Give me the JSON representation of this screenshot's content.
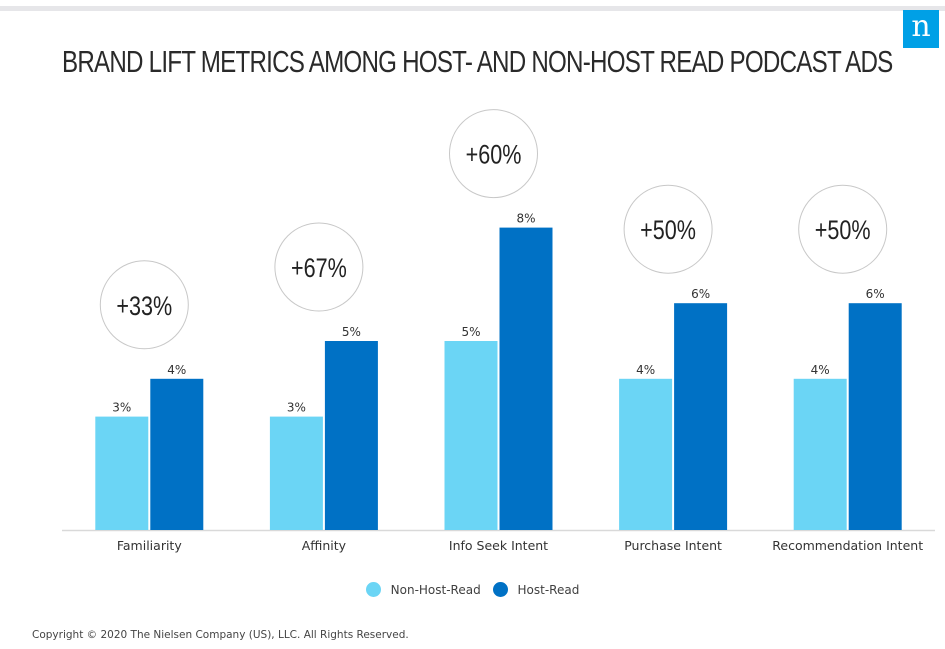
{
  "header": {
    "title": "BRAND LIFT METRICS AMONG HOST- AND NON-HOST READ PODCAST ADS",
    "logo_letter": "n",
    "logo_color": "#00a0e6"
  },
  "chart_data": {
    "type": "bar",
    "title": "BRAND LIFT METRICS AMONG HOST- AND NON-HOST READ PODCAST ADS",
    "xlabel": "",
    "ylabel": "",
    "ylim": [
      0,
      10
    ],
    "grid": false,
    "categories": [
      "Familiarity",
      "Affinity",
      "Info Seek Intent",
      "Purchase Intent",
      "Recommendation Intent"
    ],
    "series": [
      {
        "name": "Non-Host-Read",
        "color": "#6bd5f5",
        "values": [
          3,
          3,
          5,
          4,
          4
        ],
        "labels": [
          "3%",
          "3%",
          "5%",
          "4%",
          "4%"
        ]
      },
      {
        "name": "Host-Read",
        "color": "#0071c5",
        "values": [
          4,
          5,
          8,
          6,
          6
        ],
        "labels": [
          "4%",
          "5%",
          "8%",
          "6%",
          "6%"
        ]
      }
    ],
    "annotations": [
      "+33%",
      "+67%",
      "+60%",
      "+50%",
      "+50%"
    ],
    "legend_position": "bottom"
  },
  "legend": {
    "items": [
      {
        "label": "Non-Host-Read",
        "color": "#6bd5f5"
      },
      {
        "label": "Host-Read",
        "color": "#0071c5"
      }
    ]
  },
  "footer": {
    "copyright": "Copyright © 2020 The Nielsen Company (US), LLC. All Rights Reserved."
  }
}
